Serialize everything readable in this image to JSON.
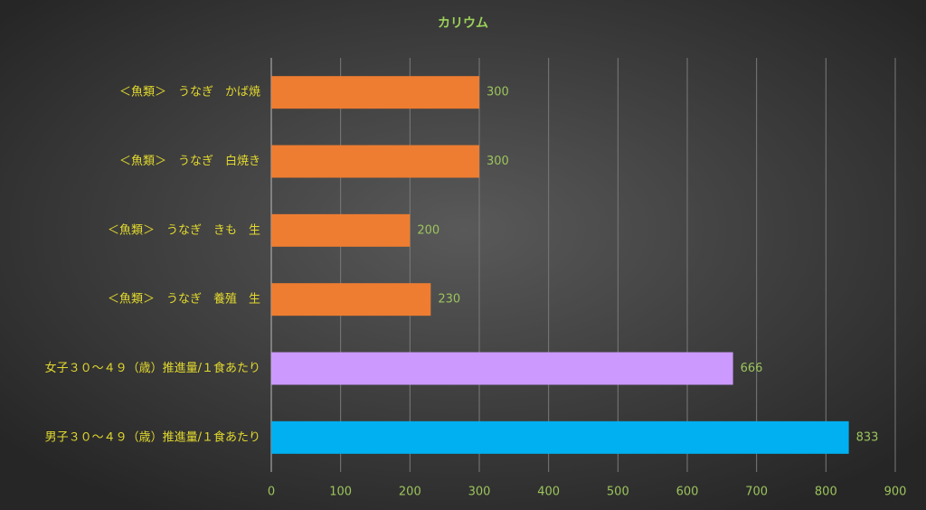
{
  "chart_data": {
    "type": "hbar",
    "title": "カリウム",
    "categories": [
      "＜魚類＞　うなぎ　かば焼",
      "＜魚類＞　うなぎ　白焼き",
      "＜魚類＞　うなぎ　きも　生",
      "＜魚類＞　うなぎ　養殖　生",
      "女子３０～４９（歳）推進量/１食あたり",
      "男子３０～４９（歳）推進量/１食あたり"
    ],
    "values": [
      300,
      300,
      200,
      230,
      666,
      833
    ],
    "colors": [
      "#ee7d31",
      "#ee7d31",
      "#ee7d31",
      "#ee7d31",
      "#cc99ff",
      "#00b0f0"
    ],
    "xlim": [
      0,
      900
    ],
    "xticks": [
      0,
      100,
      200,
      300,
      400,
      500,
      600,
      700,
      800,
      900
    ],
    "grid": true
  }
}
